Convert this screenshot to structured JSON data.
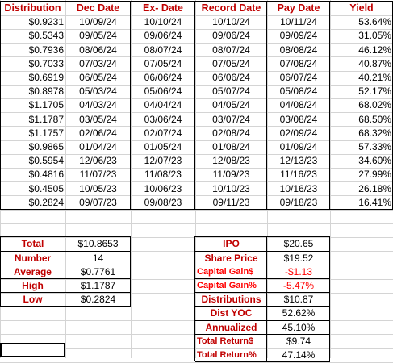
{
  "headers": [
    "Distribution",
    "Dec Date",
    "Ex- Date",
    "Record Date",
    "Pay Date",
    "Yield"
  ],
  "rows": [
    [
      "$0.9231",
      "10/09/24",
      "10/10/24",
      "10/10/24",
      "10/11/24",
      "53.64%"
    ],
    [
      "$0.5343",
      "09/05/24",
      "09/06/24",
      "09/06/24",
      "09/09/24",
      "31.05%"
    ],
    [
      "$0.7936",
      "08/06/24",
      "08/07/24",
      "08/07/24",
      "08/08/24",
      "46.12%"
    ],
    [
      "$0.7033",
      "07/03/24",
      "07/05/24",
      "07/05/24",
      "07/08/24",
      "40.87%"
    ],
    [
      "$0.6919",
      "06/05/24",
      "06/06/24",
      "06/06/24",
      "06/07/24",
      "40.21%"
    ],
    [
      "$0.8978",
      "05/03/24",
      "05/06/24",
      "05/07/24",
      "05/08/24",
      "52.17%"
    ],
    [
      "$1.1705",
      "04/03/24",
      "04/04/24",
      "04/05/24",
      "04/08/24",
      "68.02%"
    ],
    [
      "$1.1787",
      "03/05/24",
      "03/06/24",
      "03/07/24",
      "03/08/24",
      "68.50%"
    ],
    [
      "$1.1757",
      "02/06/24",
      "02/07/24",
      "02/08/24",
      "02/09/24",
      "68.32%"
    ],
    [
      "$0.9865",
      "01/04/24",
      "01/05/24",
      "01/08/24",
      "01/09/24",
      "57.33%"
    ],
    [
      "$0.5954",
      "12/06/23",
      "12/07/23",
      "12/08/23",
      "12/13/23",
      "34.60%"
    ],
    [
      "$0.4816",
      "11/07/23",
      "11/08/23",
      "11/09/23",
      "11/16/23",
      "27.99%"
    ],
    [
      "$0.4505",
      "10/05/23",
      "10/06/23",
      "10/10/23",
      "10/16/23",
      "26.18%"
    ],
    [
      "$0.2824",
      "09/07/23",
      "09/08/23",
      "09/11/23",
      "09/18/23",
      "16.41%"
    ]
  ],
  "summary_left": [
    {
      "label": "Total",
      "value": "$10.8653"
    },
    {
      "label": "Number",
      "value": "14"
    },
    {
      "label": "Average",
      "value": "$0.7761"
    },
    {
      "label": "High",
      "value": "$1.1787"
    },
    {
      "label": "Low",
      "value": "$0.2824"
    }
  ],
  "summary_right": [
    {
      "label": "IPO",
      "value": "$20.65",
      "small": false,
      "negative": false
    },
    {
      "label": "Share Price",
      "value": "$19.52",
      "small": false,
      "negative": false
    },
    {
      "label": "Capital Gain$",
      "value": "-$1.13",
      "small": true,
      "negative": true
    },
    {
      "label": "Capital Gain%",
      "value": "-5.47%",
      "small": true,
      "negative": true
    },
    {
      "label": "Distributions",
      "value": "$10.87",
      "small": false,
      "negative": false
    },
    {
      "label": "Dist YOC",
      "value": "52.62%",
      "small": false,
      "negative": false
    },
    {
      "label": "Annualized",
      "value": "45.10%",
      "small": false,
      "negative": false
    },
    {
      "label": "Total Return$",
      "value": "$9.74",
      "small": true,
      "negative": false
    },
    {
      "label": "Total Return%",
      "value": "47.14%",
      "small": true,
      "negative": false
    }
  ]
}
